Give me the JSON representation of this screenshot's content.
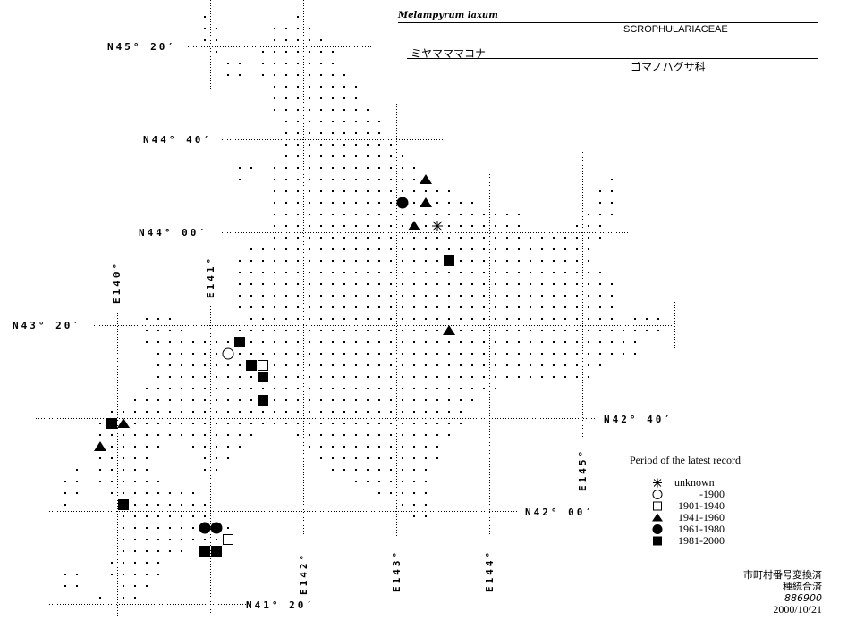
{
  "header": {
    "scientific_name": "Melampyrum laxum",
    "family_latin": "SCROPHULARIACEAE",
    "japanese_name": "ミヤマママコナ",
    "family_japanese": "ゴマノハグサ科"
  },
  "graticule": {
    "latitudes": [
      {
        "value": 45.3333,
        "label": "N45° 20′"
      },
      {
        "value": 44.6667,
        "label": "N44° 40′"
      },
      {
        "value": 44.0,
        "label": "N44° 00′"
      },
      {
        "value": 43.3333,
        "label": "N43° 20′"
      },
      {
        "value": 42.6667,
        "label": "N42° 40′"
      },
      {
        "value": 42.0,
        "label": "N42° 00′"
      },
      {
        "value": 41.3333,
        "label": "N41° 20′"
      }
    ],
    "longitudes": [
      {
        "value": 140,
        "label": "E140°"
      },
      {
        "value": 141,
        "label": "E141°"
      },
      {
        "value": 142,
        "label": "E142°"
      },
      {
        "value": 143,
        "label": "E143°"
      },
      {
        "value": 144,
        "label": "E144°"
      },
      {
        "value": 145,
        "label": "E145°"
      }
    ]
  },
  "mesh": {
    "first_row_lat_center": 45.5417,
    "first_col_lon_center": 140.9375,
    "lat_step_deg": 0.08333,
    "lon_step_deg": 0.125,
    "rows": [
      [
        [
          0,
          0
        ],
        [
          8,
          8
        ]
      ],
      [
        [
          0,
          1
        ],
        [
          6,
          9
        ]
      ],
      [
        [
          0,
          1
        ],
        [
          6,
          10
        ]
      ],
      [
        [
          1,
          1
        ],
        [
          5,
          11
        ]
      ],
      [
        [
          2,
          3
        ],
        [
          5,
          11
        ]
      ],
      [
        [
          2,
          3
        ],
        [
          5,
          12
        ]
      ],
      [
        [
          6,
          13
        ]
      ],
      [
        [
          6,
          13
        ]
      ],
      [
        [
          6,
          14
        ]
      ],
      [
        [
          7,
          15
        ]
      ],
      [
        [
          7,
          15
        ]
      ],
      [
        [
          7,
          16
        ]
      ],
      [
        [
          7,
          17
        ]
      ],
      [
        [
          3,
          4
        ],
        [
          6,
          18
        ]
      ],
      [
        [
          3,
          3
        ],
        [
          6,
          19
        ],
        [
          35,
          35
        ]
      ],
      [
        [
          6,
          21
        ],
        [
          34,
          35
        ]
      ],
      [
        [
          6,
          23
        ],
        [
          34,
          35
        ]
      ],
      [
        [
          6,
          27
        ],
        [
          33,
          35
        ]
      ],
      [
        [
          6,
          27
        ],
        [
          32,
          34
        ]
      ],
      [
        [
          6,
          34
        ]
      ],
      [
        [
          4,
          33
        ]
      ],
      [
        [
          3,
          33
        ]
      ],
      [
        [
          3,
          34
        ]
      ],
      [
        [
          3,
          35
        ]
      ],
      [
        [
          3,
          35
        ]
      ],
      [
        [
          3,
          35
        ]
      ],
      [
        [
          -5,
          -3
        ],
        [
          4,
          35
        ],
        [
          37,
          39
        ]
      ],
      [
        [
          -5,
          -2
        ],
        [
          3,
          39
        ]
      ],
      [
        [
          -5,
          37
        ]
      ],
      [
        [
          -4,
          37
        ]
      ],
      [
        [
          -4,
          34
        ]
      ],
      [
        [
          -4,
          33
        ]
      ],
      [
        [
          -5,
          25
        ]
      ],
      [
        [
          -6,
          23
        ]
      ],
      [
        [
          -8,
          22
        ]
      ],
      [
        [
          -9,
          22
        ]
      ],
      [
        [
          -9,
          4
        ],
        [
          8,
          21
        ]
      ],
      [
        [
          -9,
          -4
        ],
        [
          -1,
          3
        ],
        [
          9,
          20
        ]
      ],
      [
        [
          -9,
          -5
        ],
        [
          0,
          2
        ],
        [
          10,
          20
        ]
      ],
      [
        [
          -11,
          -11
        ],
        [
          -9,
          -5
        ],
        [
          0,
          1
        ],
        [
          11,
          19
        ]
      ],
      [
        [
          -12,
          -11
        ],
        [
          -9,
          -4
        ],
        [
          13,
          19
        ]
      ],
      [
        [
          -12,
          -11
        ],
        [
          -8,
          -1
        ],
        [
          15,
          19
        ]
      ],
      [
        [
          -12,
          -12
        ],
        [
          -7,
          0
        ],
        [
          17,
          19
        ]
      ],
      [
        [
          -7,
          0
        ],
        [
          18,
          19
        ]
      ],
      [
        [
          -7,
          2
        ]
      ],
      [
        [
          -7,
          2
        ]
      ],
      [
        [
          -7,
          -2
        ],
        [
          0,
          1
        ]
      ],
      [
        [
          -8,
          -4
        ]
      ],
      [
        [
          -12,
          -11
        ],
        [
          -8,
          -4
        ]
      ],
      [
        [
          -12,
          -11
        ],
        [
          -7,
          -5
        ]
      ],
      [
        [
          -9,
          -9
        ],
        [
          -7,
          -6
        ]
      ]
    ]
  },
  "records": [
    {
      "row": 14,
      "col": 19,
      "period": "1941-1960"
    },
    {
      "row": 16,
      "col": 17,
      "period": "1961-1980"
    },
    {
      "row": 16,
      "col": 19,
      "period": "1941-1960"
    },
    {
      "row": 18,
      "col": 18,
      "period": "1941-1960"
    },
    {
      "row": 18,
      "col": 20,
      "period": "unknown"
    },
    {
      "row": 21,
      "col": 21,
      "period": "1981-2000"
    },
    {
      "row": 27,
      "col": 21,
      "period": "1941-1960"
    },
    {
      "row": 28,
      "col": 3,
      "period": "1981-2000"
    },
    {
      "row": 29,
      "col": 2,
      "period": "-1900"
    },
    {
      "row": 30,
      "col": 4,
      "period": "1981-2000"
    },
    {
      "row": 30,
      "col": 5,
      "period": "1901-1940"
    },
    {
      "row": 31,
      "col": 5,
      "period": "1981-2000"
    },
    {
      "row": 33,
      "col": 5,
      "period": "1981-2000"
    },
    {
      "row": 35,
      "col": -8,
      "period": "1981-2000"
    },
    {
      "row": 35,
      "col": -7,
      "period": "1941-1960"
    },
    {
      "row": 37,
      "col": -9,
      "period": "1941-1960"
    },
    {
      "row": 42,
      "col": -7,
      "period": "1981-2000"
    },
    {
      "row": 44,
      "col": 0,
      "period": "1961-1980"
    },
    {
      "row": 44,
      "col": 1,
      "period": "1961-1980"
    },
    {
      "row": 45,
      "col": 2,
      "period": "1901-1940"
    },
    {
      "row": 46,
      "col": 0,
      "period": "1981-2000"
    },
    {
      "row": 46,
      "col": 1,
      "period": "1981-2000"
    }
  ],
  "legend": {
    "title": "Period of the latest record",
    "items": [
      {
        "symbol": "asterisk",
        "label": "unknown",
        "period": "unknown"
      },
      {
        "symbol": "open-circle",
        "label": "    -1900",
        "period": "-1900"
      },
      {
        "symbol": "open-square",
        "label": "1901-1940",
        "period": "1901-1940"
      },
      {
        "symbol": "filled-triangle",
        "label": "1941-1960",
        "period": "1941-1960"
      },
      {
        "symbol": "filled-circle",
        "label": "1961-1980",
        "period": "1961-1980"
      },
      {
        "symbol": "filled-square",
        "label": "1981-2000",
        "period": "1981-2000"
      }
    ]
  },
  "notes": {
    "line1": "市町村番号変換済",
    "line2": "種統合済",
    "code": "886900",
    "date": "2000/10/21"
  }
}
